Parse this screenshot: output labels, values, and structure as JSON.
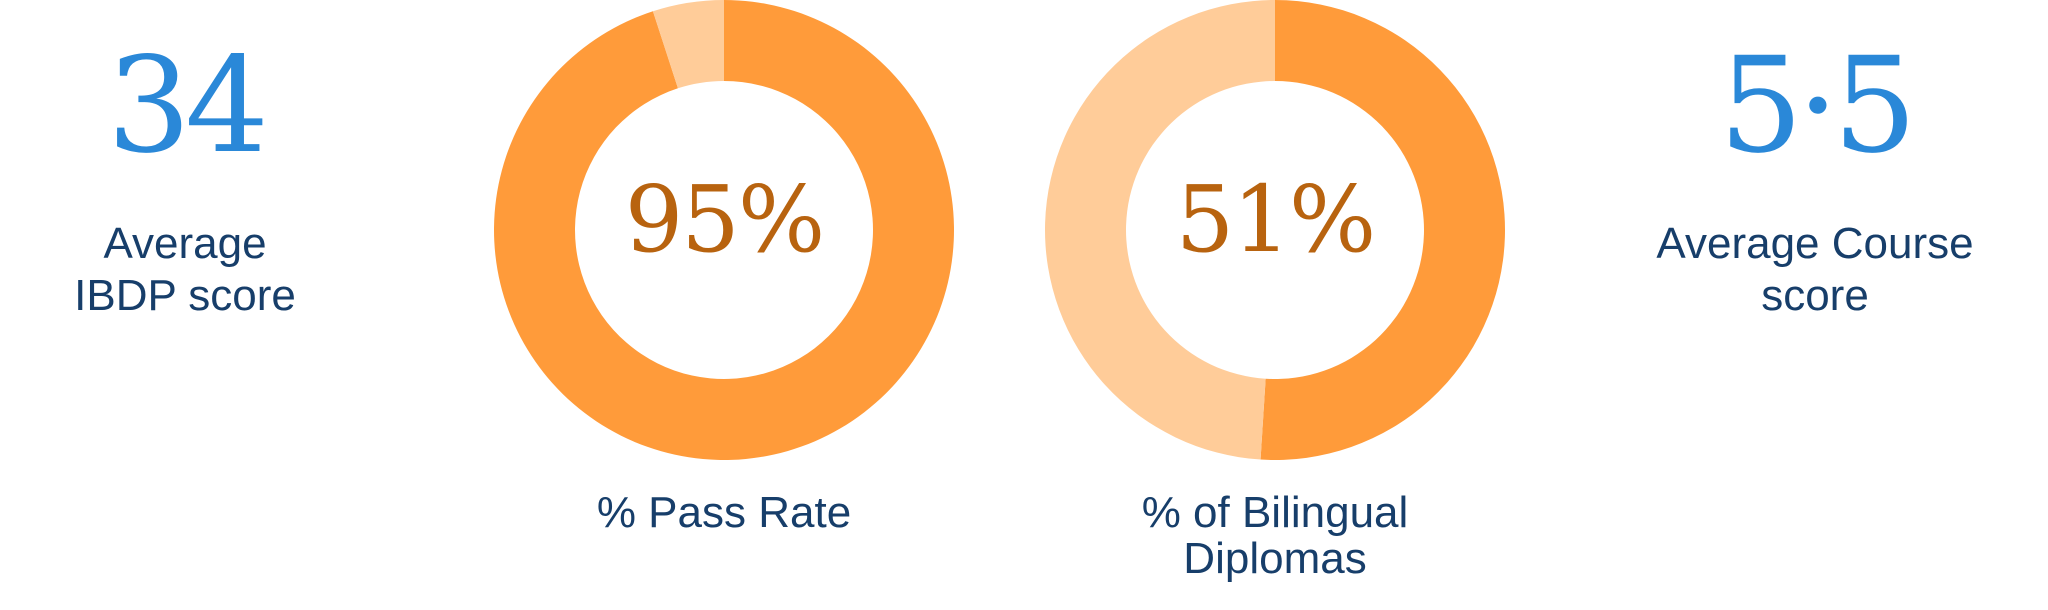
{
  "colors": {
    "blue": "#2a88d8",
    "navy": "#173e6a",
    "orange": "#ff9b3a",
    "peach": "#ffcc99",
    "brown": "#b8630f"
  },
  "stats": [
    {
      "value": "34",
      "label_lines": [
        "Average",
        "IBDP score"
      ]
    },
    {
      "value": "5·5",
      "label_lines": [
        "Average Course",
        "score"
      ]
    }
  ],
  "chart_data": [
    {
      "type": "pie",
      "center_label": "95%",
      "caption_lines": [
        "% Pass Rate"
      ],
      "slices": [
        {
          "value": 95,
          "color": "#ff9b3a"
        },
        {
          "value": 5,
          "color": "#ffcc99"
        }
      ]
    },
    {
      "type": "pie",
      "center_label": "51%",
      "caption_lines": [
        "% of Bilingual",
        "Diplomas"
      ],
      "slices": [
        {
          "value": 51,
          "color": "#ff9b3a"
        },
        {
          "value": 49,
          "color": "#ffcc99"
        }
      ]
    }
  ]
}
